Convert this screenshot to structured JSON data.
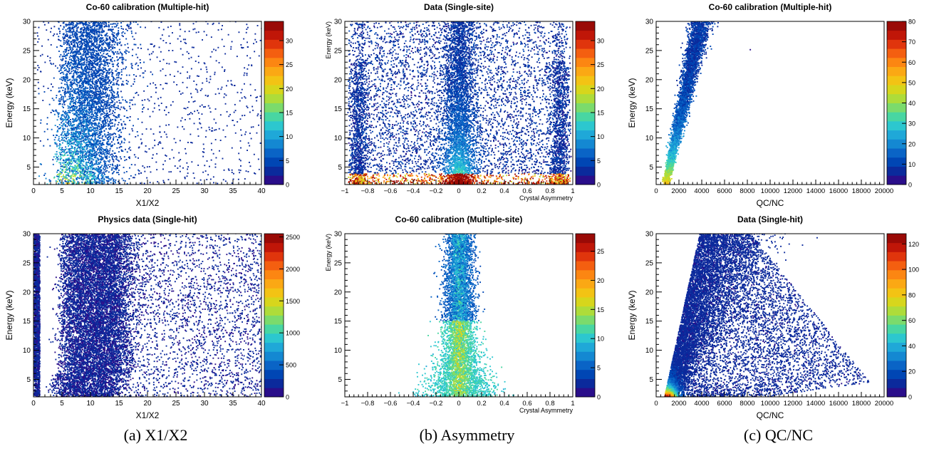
{
  "colorscale": [
    "#2a0e8a",
    "#0b2a9c",
    "#0046b4",
    "#0a64c6",
    "#1488d2",
    "#1fa8d8",
    "#2cc7cf",
    "#48d6a2",
    "#7bdb6c",
    "#aedc3a",
    "#d7d61c",
    "#f3c314",
    "#fba814",
    "#fc8612",
    "#f45f10",
    "#e0350c",
    "#c01608",
    "#9a0a06"
  ],
  "panels": [
    {
      "id": "a-top",
      "title": "Co-60 calibration (Multiple-hit)",
      "xlabel": "X1/X2",
      "ylabel": "Energy (keV)",
      "xlim": [
        0,
        40
      ],
      "ylim": [
        2,
        30
      ],
      "xticks": [
        {
          "v": 0,
          "t": "0"
        },
        {
          "v": 5,
          "t": "5"
        },
        {
          "v": 10,
          "t": "10"
        },
        {
          "v": 15,
          "t": "15"
        },
        {
          "v": 20,
          "t": "20"
        },
        {
          "v": 25,
          "t": "25"
        },
        {
          "v": 30,
          "t": "30"
        },
        {
          "v": 35,
          "t": "35"
        },
        {
          "v": 40,
          "t": "40"
        }
      ],
      "yticks": [
        {
          "v": 5,
          "t": "5"
        },
        {
          "v": 10,
          "t": "10"
        },
        {
          "v": 15,
          "t": "15"
        },
        {
          "v": 20,
          "t": "20"
        },
        {
          "v": 25,
          "t": "25"
        },
        {
          "v": 30,
          "t": "30"
        }
      ],
      "zmax": 34,
      "zticks": [
        {
          "v": 0,
          "t": "0"
        },
        {
          "v": 5,
          "t": "5"
        },
        {
          "v": 10,
          "t": "10"
        },
        {
          "v": 15,
          "t": "15"
        },
        {
          "v": 20,
          "t": "20"
        },
        {
          "v": 25,
          "t": "25"
        },
        {
          "v": 30,
          "t": "30"
        }
      ]
    },
    {
      "id": "b-top",
      "title": "Data (Single-site)",
      "xlabel": "Crystal Asymmetry",
      "ylabel": "Energy (keV)",
      "xlim": [
        -1,
        1
      ],
      "ylim": [
        2,
        30
      ],
      "xticks": [
        {
          "v": -1,
          "t": "−1"
        },
        {
          "v": -0.8,
          "t": "−0.8"
        },
        {
          "v": -0.6,
          "t": "−0.6"
        },
        {
          "v": -0.4,
          "t": "−0.4"
        },
        {
          "v": -0.2,
          "t": "−0.2"
        },
        {
          "v": 0,
          "t": "0"
        },
        {
          "v": 0.2,
          "t": "0.2"
        },
        {
          "v": 0.4,
          "t": "0.4"
        },
        {
          "v": 0.6,
          "t": "0.6"
        },
        {
          "v": 0.8,
          "t": "0.8"
        },
        {
          "v": 1,
          "t": "1"
        }
      ],
      "yticks": [
        {
          "v": 5,
          "t": "5"
        },
        {
          "v": 10,
          "t": "10"
        },
        {
          "v": 15,
          "t": "15"
        },
        {
          "v": 20,
          "t": "20"
        },
        {
          "v": 25,
          "t": "25"
        },
        {
          "v": 30,
          "t": "30"
        }
      ],
      "zmax": 34,
      "zticks": [
        {
          "v": 0,
          "t": "0"
        },
        {
          "v": 5,
          "t": "5"
        },
        {
          "v": 10,
          "t": "10"
        },
        {
          "v": 15,
          "t": "15"
        },
        {
          "v": 20,
          "t": "20"
        },
        {
          "v": 25,
          "t": "25"
        },
        {
          "v": 30,
          "t": "30"
        }
      ]
    },
    {
      "id": "c-top",
      "title": "Co-60 calibration (Multiple-hit)",
      "xlabel": "QC/NC",
      "ylabel": "Energy (keV)",
      "xlim": [
        0,
        20000
      ],
      "ylim": [
        2,
        30
      ],
      "xticks": [
        {
          "v": 0,
          "t": "0"
        },
        {
          "v": 2000,
          "t": "2000"
        },
        {
          "v": 4000,
          "t": "4000"
        },
        {
          "v": 6000,
          "t": "6000"
        },
        {
          "v": 8000,
          "t": "8000"
        },
        {
          "v": 10000,
          "t": "10000"
        },
        {
          "v": 12000,
          "t": "12000"
        },
        {
          "v": 14000,
          "t": "14000"
        },
        {
          "v": 16000,
          "t": "16000"
        },
        {
          "v": 18000,
          "t": "18000"
        },
        {
          "v": 20000,
          "t": "20000"
        }
      ],
      "yticks": [
        {
          "v": 5,
          "t": "5"
        },
        {
          "v": 10,
          "t": "10"
        },
        {
          "v": 15,
          "t": "15"
        },
        {
          "v": 20,
          "t": "20"
        },
        {
          "v": 25,
          "t": "25"
        },
        {
          "v": 30,
          "t": "30"
        }
      ],
      "zmax": 80,
      "zticks": [
        {
          "v": 0,
          "t": "0"
        },
        {
          "v": 10,
          "t": "10"
        },
        {
          "v": 20,
          "t": "20"
        },
        {
          "v": 30,
          "t": "30"
        },
        {
          "v": 40,
          "t": "40"
        },
        {
          "v": 50,
          "t": "50"
        },
        {
          "v": 60,
          "t": "60"
        },
        {
          "v": 70,
          "t": "70"
        },
        {
          "v": 80,
          "t": "80"
        }
      ]
    },
    {
      "id": "a-bottom",
      "title": "Physics data (Single-hit)",
      "xlabel": "X1/X2",
      "ylabel": "Energy (keV)",
      "xlim": [
        0,
        40
      ],
      "ylim": [
        2,
        30
      ],
      "xticks": [
        {
          "v": 0,
          "t": "0"
        },
        {
          "v": 5,
          "t": "5"
        },
        {
          "v": 10,
          "t": "10"
        },
        {
          "v": 15,
          "t": "15"
        },
        {
          "v": 20,
          "t": "20"
        },
        {
          "v": 25,
          "t": "25"
        },
        {
          "v": 30,
          "t": "30"
        },
        {
          "v": 35,
          "t": "35"
        },
        {
          "v": 40,
          "t": "40"
        }
      ],
      "yticks": [
        {
          "v": 5,
          "t": "5"
        },
        {
          "v": 10,
          "t": "10"
        },
        {
          "v": 15,
          "t": "15"
        },
        {
          "v": 20,
          "t": "20"
        },
        {
          "v": 25,
          "t": "25"
        },
        {
          "v": 30,
          "t": "30"
        }
      ],
      "zmax": 2550,
      "zticks": [
        {
          "v": 0,
          "t": "0"
        },
        {
          "v": 500,
          "t": "500"
        },
        {
          "v": 1000,
          "t": "1000"
        },
        {
          "v": 1500,
          "t": "1500"
        },
        {
          "v": 2000,
          "t": "2000"
        },
        {
          "v": 2500,
          "t": "2500"
        }
      ]
    },
    {
      "id": "b-bottom",
      "title": "Co-60 calibration (Multiple-site)",
      "xlabel": "Crystal Asymmetry",
      "ylabel": "Energy (keV)",
      "xlim": [
        -1,
        1
      ],
      "ylim": [
        2,
        30
      ],
      "xticks": [
        {
          "v": -1,
          "t": "−1"
        },
        {
          "v": -0.8,
          "t": "−0.8"
        },
        {
          "v": -0.6,
          "t": "−0.6"
        },
        {
          "v": -0.4,
          "t": "−0.4"
        },
        {
          "v": -0.2,
          "t": "−0.2"
        },
        {
          "v": 0,
          "t": "0"
        },
        {
          "v": 0.2,
          "t": "0.2"
        },
        {
          "v": 0.4,
          "t": "0.4"
        },
        {
          "v": 0.6,
          "t": "0.6"
        },
        {
          "v": 0.8,
          "t": "0.8"
        },
        {
          "v": 1,
          "t": "1"
        }
      ],
      "yticks": [
        {
          "v": 5,
          "t": "5"
        },
        {
          "v": 10,
          "t": "10"
        },
        {
          "v": 15,
          "t": "15"
        },
        {
          "v": 20,
          "t": "20"
        },
        {
          "v": 25,
          "t": "25"
        },
        {
          "v": 30,
          "t": "30"
        }
      ],
      "zmax": 28,
      "zticks": [
        {
          "v": 0,
          "t": "0"
        },
        {
          "v": 5,
          "t": "5"
        },
        {
          "v": 10,
          "t": "10"
        },
        {
          "v": 15,
          "t": "15"
        },
        {
          "v": 20,
          "t": "20"
        },
        {
          "v": 25,
          "t": "25"
        }
      ]
    },
    {
      "id": "c-bottom",
      "title": "Data (Single-hit)",
      "xlabel": "QC/NC",
      "ylabel": "Energy (keV)",
      "xlim": [
        0,
        20000
      ],
      "ylim": [
        2,
        30
      ],
      "xticks": [
        {
          "v": 0,
          "t": "0"
        },
        {
          "v": 2000,
          "t": "2000"
        },
        {
          "v": 4000,
          "t": "4000"
        },
        {
          "v": 6000,
          "t": "6000"
        },
        {
          "v": 8000,
          "t": "8000"
        },
        {
          "v": 10000,
          "t": "10000"
        },
        {
          "v": 12000,
          "t": "12000"
        },
        {
          "v": 14000,
          "t": "14000"
        },
        {
          "v": 16000,
          "t": "16000"
        },
        {
          "v": 18000,
          "t": "18000"
        },
        {
          "v": 20000,
          "t": "20000"
        }
      ],
      "yticks": [
        {
          "v": 5,
          "t": "5"
        },
        {
          "v": 10,
          "t": "10"
        },
        {
          "v": 15,
          "t": "15"
        },
        {
          "v": 20,
          "t": "20"
        },
        {
          "v": 25,
          "t": "25"
        },
        {
          "v": 30,
          "t": "30"
        }
      ],
      "zmax": 128,
      "zticks": [
        {
          "v": 0,
          "t": "0"
        },
        {
          "v": 20,
          "t": "20"
        },
        {
          "v": 40,
          "t": "40"
        },
        {
          "v": 60,
          "t": "60"
        },
        {
          "v": 80,
          "t": "80"
        },
        {
          "v": 100,
          "t": "100"
        },
        {
          "v": 120,
          "t": "120"
        }
      ]
    }
  ],
  "captions": [
    "(a) X1/X2",
    "(b) Asymmetry",
    "(c) QC/NC"
  ],
  "chart_data": [
    {
      "type": "heatmap",
      "title": "Co-60 calibration (Multiple-hit)",
      "xlabel": "X1/X2",
      "ylabel": "Energy (keV)",
      "xlim": [
        0,
        40
      ],
      "ylim": [
        2,
        30
      ],
      "zlim": [
        0,
        34
      ],
      "description_of_density": "dense band near X1/X2 5-12 extending upward, highest counts at low energy around X1/X2 3-8"
    },
    {
      "type": "heatmap",
      "title": "Data (Single-site)",
      "xlabel": "Crystal Asymmetry",
      "ylabel": "Energy (keV)",
      "xlim": [
        -1,
        1
      ],
      "ylim": [
        2,
        30
      ],
      "zlim": [
        0,
        34
      ],
      "description_of_density": "broad distribution across asymmetry with central band at 0 and bands near -0.85 and +0.85; highest counts at energies 2-4 keV"
    },
    {
      "type": "heatmap",
      "title": "Co-60 calibration (Multiple-hit)",
      "xlabel": "QC/NC",
      "ylabel": "Energy (keV)",
      "xlim": [
        0,
        20000
      ],
      "ylim": [
        2,
        30
      ],
      "zlim": [
        0,
        80
      ],
      "description_of_density": "narrow linear band from QC/NC ~1000 at 2 keV to ~4000 at 30 keV"
    },
    {
      "type": "heatmap",
      "title": "Physics data (Single-hit)",
      "xlabel": "X1/X2",
      "ylabel": "Energy (keV)",
      "xlim": [
        0,
        40
      ],
      "ylim": [
        2,
        30
      ],
      "zlim": [
        0,
        2550
      ],
      "description_of_density": "very dense column at X1/X2 0-1 and broad dense region 4-18"
    },
    {
      "type": "heatmap",
      "title": "Co-60 calibration (Multiple-site)",
      "xlabel": "Crystal Asymmetry",
      "ylabel": "Energy (keV)",
      "xlim": [
        -1,
        1
      ],
      "ylim": [
        2,
        30
      ],
      "zlim": [
        0,
        28
      ],
      "description_of_density": "narrow central band around asymmetry 0, widening at low energy"
    },
    {
      "type": "heatmap",
      "title": "Data (Single-hit)",
      "xlabel": "QC/NC",
      "ylabel": "Energy (keV)",
      "xlim": [
        0,
        20000
      ],
      "ylim": [
        2,
        30
      ],
      "zlim": [
        0,
        128
      ],
      "description_of_density": "wedge from QC/NC ~1000 spreading to 20000 at low energy, peak counts near (1000, 2 keV)"
    }
  ]
}
